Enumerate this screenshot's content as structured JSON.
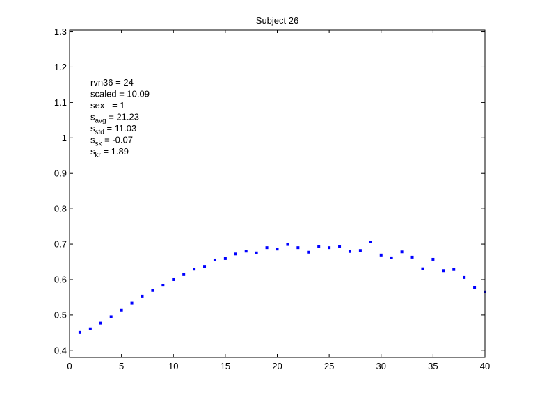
{
  "chart_data": {
    "type": "scatter",
    "title": "Subject 26",
    "xlabel": "",
    "ylabel": "",
    "xlim": [
      0,
      40
    ],
    "ylim": [
      0.38,
      1.305
    ],
    "xticks": [
      0,
      5,
      10,
      15,
      20,
      25,
      30,
      35,
      40
    ],
    "xtick_labels": [
      "0",
      "5",
      "10",
      "15",
      "20",
      "25",
      "30",
      "35",
      "40"
    ],
    "yticks": [
      0.4,
      0.5,
      0.6,
      0.7,
      0.8,
      0.9,
      1.0,
      1.1,
      1.2,
      1.3
    ],
    "ytick_labels": [
      "0.4",
      "0.5",
      "0.6",
      "0.7",
      "0.8",
      "0.9",
      "1",
      "1.1",
      "1.2",
      "1.3"
    ],
    "grid": false,
    "marker_color": "#0000ff",
    "series": [
      {
        "x": [
          1,
          2,
          3,
          4,
          5,
          6,
          7,
          8,
          9,
          10,
          11,
          12,
          13,
          14,
          15,
          16,
          17,
          18,
          19,
          20,
          21,
          22,
          23,
          24,
          25,
          26,
          27,
          28,
          29,
          30,
          31,
          32,
          33,
          34,
          35,
          36,
          37,
          38,
          39,
          40
        ],
        "values": [
          0.451,
          0.461,
          0.477,
          0.495,
          0.514,
          0.534,
          0.553,
          0.569,
          0.584,
          0.6,
          0.614,
          0.629,
          0.637,
          0.655,
          0.659,
          0.672,
          0.68,
          0.675,
          0.69,
          0.686,
          0.699,
          0.69,
          0.677,
          0.694,
          0.69,
          0.693,
          0.679,
          0.682,
          0.706,
          0.669,
          0.661,
          0.678,
          0.663,
          0.63,
          0.657,
          0.625,
          0.628,
          0.606,
          0.578,
          0.565
        ]
      }
    ],
    "annotations": [
      {
        "base": "rvn36",
        "sub": "",
        "rest": " = 24"
      },
      {
        "base": "scaled",
        "sub": "",
        "rest": " = 10.09"
      },
      {
        "base": "sex",
        "sub": "",
        "rest": "   = 1"
      },
      {
        "base": "s",
        "sub": "avg",
        "rest": " = 21.23"
      },
      {
        "base": "s",
        "sub": "std",
        "rest": " = 11.03"
      },
      {
        "base": "s",
        "sub": "sk",
        "rest": " = -0.07"
      },
      {
        "base": "s",
        "sub": "kr",
        "rest": " = 1.89"
      }
    ]
  }
}
